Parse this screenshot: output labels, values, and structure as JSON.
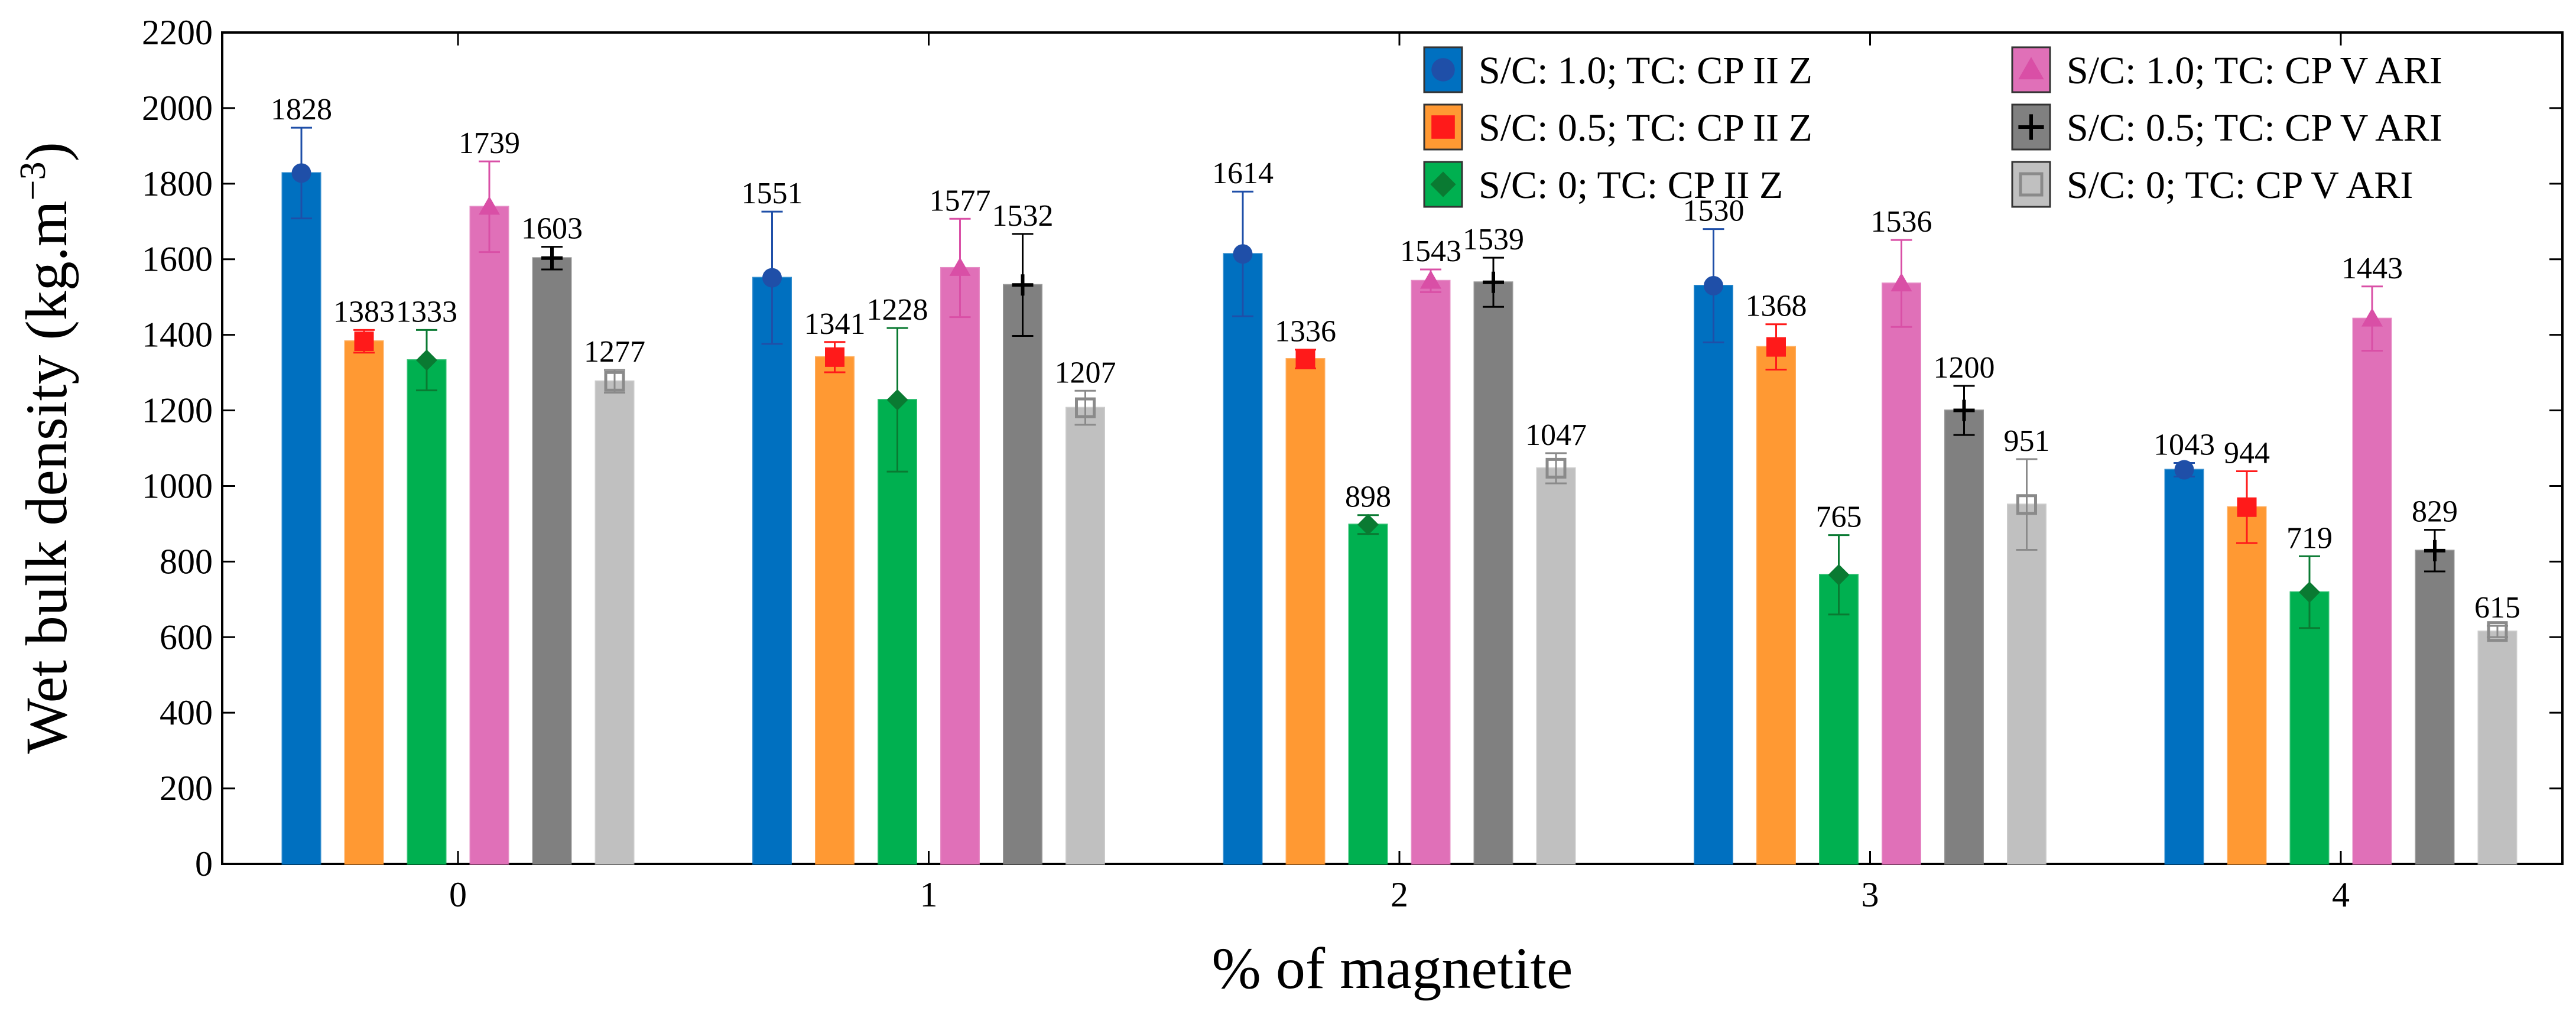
{
  "chart_data": {
    "type": "bar",
    "title": "",
    "xlabel": "% of magnetite",
    "ylabel": "Wet bulk density (kg.m",
    "ylabel_sup": "−3",
    "ylabel_close": ")",
    "ylim": [
      0,
      2200
    ],
    "yticks": [
      0,
      200,
      400,
      600,
      800,
      1000,
      1200,
      1400,
      1600,
      1800,
      2000,
      2200
    ],
    "grid": false,
    "legend_position": "top-right",
    "categories": [
      "0",
      "1",
      "2",
      "3",
      "4"
    ],
    "series": [
      {
        "name": "S/C: 1.0; TC: CP II Z",
        "color": "#0070c0",
        "marker": "circle",
        "marker_color": "#1f4fa8",
        "values": [
          1828,
          1551,
          1614,
          1530,
          1043
        ],
        "errors": [
          120,
          175,
          165,
          150,
          18
        ]
      },
      {
        "name": "S/C: 0.5; TC: CP II Z",
        "color": "#ff9933",
        "marker": "square",
        "marker_color": "#ff1a1a",
        "values": [
          1383,
          1341,
          1336,
          1368,
          944
        ],
        "errors": [
          30,
          40,
          25,
          60,
          95
        ]
      },
      {
        "name": "S/C: 0; TC: CP II Z",
        "color": "#00b050",
        "marker": "diamond",
        "marker_color": "#0a7a32",
        "values": [
          1333,
          1228,
          898,
          765,
          719
        ],
        "errors": [
          80,
          190,
          25,
          105,
          95
        ]
      },
      {
        "name": "S/C: 1.0; TC: CP V ARI",
        "color": "#e070b8",
        "marker": "triangle",
        "marker_color": "#d94fa6",
        "values": [
          1739,
          1577,
          1543,
          1536,
          1443
        ],
        "errors": [
          120,
          130,
          30,
          115,
          85
        ]
      },
      {
        "name": "S/C: 0.5; TC: CP V ARI",
        "color": "#808080",
        "marker": "plus",
        "marker_color": "#000000",
        "values": [
          1603,
          1532,
          1539,
          1200,
          829
        ],
        "errors": [
          30,
          135,
          65,
          65,
          55
        ]
      },
      {
        "name": "S/C: 0; TC: CP V ARI",
        "color": "#c0c0c0",
        "marker": "open-square",
        "marker_color": "#8a8a8a",
        "values": [
          1277,
          1207,
          1047,
          951,
          615
        ],
        "errors": [
          30,
          45,
          40,
          120,
          15
        ]
      }
    ],
    "legend_order": [
      0,
      3,
      1,
      4,
      2,
      5
    ]
  }
}
